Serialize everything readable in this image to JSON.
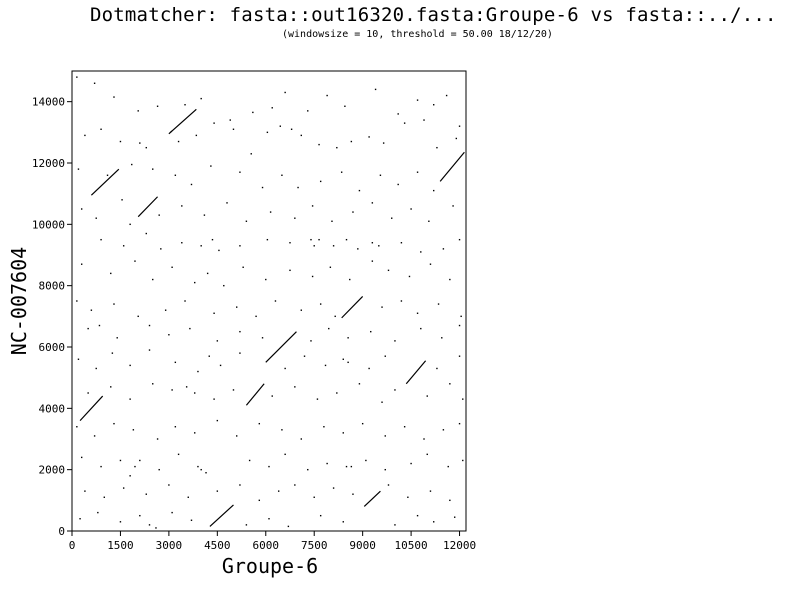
{
  "header": {
    "title": "Dotmatcher: fasta::out16320.fasta:Groupe-6 vs fasta::../...",
    "subtitle": "(windowsize = 10, threshold = 50.00  18/12/20)"
  },
  "chart_data": {
    "type": "scatter",
    "title": "Dotmatcher: fasta::out16320.fasta:Groupe-6 vs fasta::../...",
    "subtitle": "(windowsize = 10, threshold = 50.00  18/12/20)",
    "xlabel": "Groupe-6",
    "ylabel": "NC-007604",
    "xlim": [
      0,
      12200
    ],
    "ylim": [
      0,
      15000
    ],
    "x_ticks": [
      0,
      1500,
      3000,
      4500,
      6000,
      7500,
      9000,
      10500,
      12000
    ],
    "x_tick_labels": [
      "0",
      "1500",
      "3000",
      "4500",
      "6000",
      "7500",
      "9000",
      "10500",
      "12000"
    ],
    "y_ticks": [
      0,
      2000,
      4000,
      6000,
      8000,
      10000,
      12000,
      14000
    ],
    "y_tick_labels": [
      "0",
      "2000",
      "4000",
      "6000",
      "8000",
      "10000",
      "12000",
      "14000"
    ],
    "grid": false,
    "line_color": "#000000",
    "segments": [
      {
        "x1": 4270,
        "y1": 150,
        "x2": 5000,
        "y2": 850
      },
      {
        "x1": 250,
        "y1": 3600,
        "x2": 950,
        "y2": 4400
      },
      {
        "x1": 5400,
        "y1": 4100,
        "x2": 5950,
        "y2": 4800
      },
      {
        "x1": 6000,
        "y1": 5500,
        "x2": 6950,
        "y2": 6500
      },
      {
        "x1": 8350,
        "y1": 6950,
        "x2": 9000,
        "y2": 7650
      },
      {
        "x1": 10350,
        "y1": 4800,
        "x2": 10950,
        "y2": 5550
      },
      {
        "x1": 2050,
        "y1": 10250,
        "x2": 2650,
        "y2": 10900
      },
      {
        "x1": 3100,
        "y1": 13050,
        "x2": 3000,
        "y2": 12950
      },
      {
        "x1": 3050,
        "y1": 13000,
        "x2": 3850,
        "y2": 13750
      },
      {
        "x1": 11400,
        "y1": 11400,
        "x2": 12150,
        "y2": 12350
      },
      {
        "x1": 600,
        "y1": 10950,
        "x2": 1450,
        "y2": 11800
      },
      {
        "x1": 9050,
        "y1": 800,
        "x2": 9550,
        "y2": 1300
      }
    ],
    "dots": [
      [
        150,
        14800
      ],
      [
        700,
        14600
      ],
      [
        1300,
        14150
      ],
      [
        2050,
        13700
      ],
      [
        2650,
        13850
      ],
      [
        3500,
        13900
      ],
      [
        4000,
        14100
      ],
      [
        4900,
        13400
      ],
      [
        5600,
        13650
      ],
      [
        6200,
        13800
      ],
      [
        6600,
        14300
      ],
      [
        7300,
        13700
      ],
      [
        7900,
        14200
      ],
      [
        8450,
        13850
      ],
      [
        9400,
        14400
      ],
      [
        10100,
        13600
      ],
      [
        10700,
        14050
      ],
      [
        11200,
        13900
      ],
      [
        11600,
        14200
      ],
      [
        12000,
        13200
      ],
      [
        400,
        12900
      ],
      [
        900,
        13100
      ],
      [
        1500,
        12700
      ],
      [
        2100,
        12650
      ],
      [
        2300,
        12500
      ],
      [
        3300,
        12700
      ],
      [
        3850,
        12900
      ],
      [
        4400,
        13300
      ],
      [
        5000,
        13100
      ],
      [
        5550,
        12300
      ],
      [
        6050,
        13000
      ],
      [
        6450,
        13200
      ],
      [
        6800,
        13100
      ],
      [
        7100,
        12900
      ],
      [
        7650,
        12600
      ],
      [
        8200,
        12500
      ],
      [
        8650,
        12700
      ],
      [
        9200,
        12850
      ],
      [
        9650,
        12650
      ],
      [
        10300,
        13300
      ],
      [
        10900,
        13400
      ],
      [
        11300,
        12500
      ],
      [
        11900,
        12800
      ],
      [
        200,
        11800
      ],
      [
        1100,
        11600
      ],
      [
        1850,
        11950
      ],
      [
        2500,
        11800
      ],
      [
        3200,
        11600
      ],
      [
        3700,
        11300
      ],
      [
        4300,
        11900
      ],
      [
        5200,
        11700
      ],
      [
        5900,
        11200
      ],
      [
        6500,
        11600
      ],
      [
        7000,
        11200
      ],
      [
        7700,
        11400
      ],
      [
        8350,
        11700
      ],
      [
        8900,
        11100
      ],
      [
        9550,
        11600
      ],
      [
        10100,
        11300
      ],
      [
        10700,
        11700
      ],
      [
        11200,
        11100
      ],
      [
        300,
        10500
      ],
      [
        750,
        10200
      ],
      [
        1550,
        10800
      ],
      [
        1800,
        10000
      ],
      [
        2700,
        10300
      ],
      [
        3400,
        10600
      ],
      [
        4100,
        10300
      ],
      [
        4800,
        10700
      ],
      [
        5400,
        10100
      ],
      [
        6150,
        10400
      ],
      [
        6900,
        10200
      ],
      [
        7450,
        10600
      ],
      [
        8050,
        10100
      ],
      [
        8700,
        10400
      ],
      [
        9300,
        10700
      ],
      [
        9900,
        10200
      ],
      [
        10500,
        10500
      ],
      [
        11050,
        10100
      ],
      [
        11800,
        10600
      ],
      [
        900,
        9500
      ],
      [
        1600,
        9300
      ],
      [
        2300,
        9700
      ],
      [
        2750,
        9200
      ],
      [
        3400,
        9400
      ],
      [
        4000,
        9300
      ],
      [
        4350,
        9500
      ],
      [
        4550,
        9150
      ],
      [
        5200,
        9300
      ],
      [
        6050,
        9500
      ],
      [
        6750,
        9400
      ],
      [
        7400,
        9500
      ],
      [
        7500,
        9300
      ],
      [
        7650,
        9500
      ],
      [
        8100,
        9300
      ],
      [
        8500,
        9500
      ],
      [
        8850,
        9200
      ],
      [
        9300,
        9400
      ],
      [
        9500,
        9300
      ],
      [
        10200,
        9400
      ],
      [
        10800,
        9100
      ],
      [
        11500,
        9200
      ],
      [
        12000,
        9500
      ],
      [
        300,
        8700
      ],
      [
        1200,
        8400
      ],
      [
        1950,
        8800
      ],
      [
        2500,
        8200
      ],
      [
        3100,
        8600
      ],
      [
        3800,
        8100
      ],
      [
        4200,
        8400
      ],
      [
        4700,
        8000
      ],
      [
        5300,
        8600
      ],
      [
        6000,
        8200
      ],
      [
        6750,
        8500
      ],
      [
        7450,
        8300
      ],
      [
        8000,
        8600
      ],
      [
        8600,
        8200
      ],
      [
        9300,
        8800
      ],
      [
        9800,
        8500
      ],
      [
        10450,
        8300
      ],
      [
        11100,
        8700
      ],
      [
        11700,
        8200
      ],
      [
        150,
        7500
      ],
      [
        600,
        7200
      ],
      [
        1300,
        7400
      ],
      [
        2050,
        7000
      ],
      [
        2900,
        7200
      ],
      [
        3500,
        7500
      ],
      [
        4400,
        7100
      ],
      [
        5100,
        7300
      ],
      [
        5700,
        7000
      ],
      [
        6300,
        7500
      ],
      [
        7100,
        7200
      ],
      [
        7700,
        7400
      ],
      [
        8150,
        7000
      ],
      [
        9600,
        7300
      ],
      [
        10200,
        7500
      ],
      [
        10700,
        7100
      ],
      [
        11350,
        7400
      ],
      [
        12050,
        7000
      ],
      [
        500,
        6600
      ],
      [
        850,
        6700
      ],
      [
        1400,
        6300
      ],
      [
        2400,
        6700
      ],
      [
        3000,
        6400
      ],
      [
        3650,
        6600
      ],
      [
        4500,
        6200
      ],
      [
        5200,
        6500
      ],
      [
        5900,
        6300
      ],
      [
        7400,
        6200
      ],
      [
        7950,
        6600
      ],
      [
        8550,
        6300
      ],
      [
        9250,
        6500
      ],
      [
        10000,
        6200
      ],
      [
        10800,
        6600
      ],
      [
        11450,
        6300
      ],
      [
        12000,
        6700
      ],
      [
        200,
        5600
      ],
      [
        750,
        5300
      ],
      [
        1250,
        5800
      ],
      [
        1800,
        5400
      ],
      [
        2400,
        5900
      ],
      [
        3200,
        5500
      ],
      [
        3900,
        5200
      ],
      [
        4250,
        5700
      ],
      [
        4600,
        5400
      ],
      [
        5200,
        5800
      ],
      [
        6600,
        5300
      ],
      [
        7200,
        5700
      ],
      [
        7850,
        5400
      ],
      [
        8400,
        5600
      ],
      [
        8550,
        5500
      ],
      [
        9200,
        5300
      ],
      [
        9700,
        5700
      ],
      [
        11300,
        5300
      ],
      [
        12000,
        5700
      ],
      [
        500,
        4500
      ],
      [
        1200,
        4700
      ],
      [
        1800,
        4300
      ],
      [
        2500,
        4800
      ],
      [
        3100,
        4600
      ],
      [
        3550,
        4700
      ],
      [
        3800,
        4500
      ],
      [
        4400,
        4300
      ],
      [
        5000,
        4600
      ],
      [
        6200,
        4400
      ],
      [
        6900,
        4700
      ],
      [
        7600,
        4300
      ],
      [
        8200,
        4500
      ],
      [
        8900,
        4800
      ],
      [
        9600,
        4200
      ],
      [
        10000,
        4600
      ],
      [
        11000,
        4400
      ],
      [
        11700,
        4800
      ],
      [
        12100,
        4300
      ],
      [
        150,
        3400
      ],
      [
        700,
        3100
      ],
      [
        1300,
        3500
      ],
      [
        1900,
        3300
      ],
      [
        2650,
        3000
      ],
      [
        3200,
        3400
      ],
      [
        3800,
        3200
      ],
      [
        4500,
        3600
      ],
      [
        5100,
        3100
      ],
      [
        5800,
        3500
      ],
      [
        6500,
        3300
      ],
      [
        7100,
        3000
      ],
      [
        7800,
        3400
      ],
      [
        8400,
        3200
      ],
      [
        9000,
        3500
      ],
      [
        9700,
        3100
      ],
      [
        10300,
        3400
      ],
      [
        10900,
        3000
      ],
      [
        11500,
        3300
      ],
      [
        12000,
        3500
      ],
      [
        300,
        2400
      ],
      [
        900,
        2100
      ],
      [
        1500,
        2300
      ],
      [
        1800,
        1800
      ],
      [
        1950,
        2100
      ],
      [
        2100,
        2300
      ],
      [
        2700,
        2000
      ],
      [
        3300,
        2500
      ],
      [
        3900,
        2100
      ],
      [
        4000,
        2000
      ],
      [
        4150,
        1900
      ],
      [
        5500,
        2300
      ],
      [
        6100,
        2100
      ],
      [
        6600,
        2500
      ],
      [
        7300,
        2000
      ],
      [
        7900,
        2200
      ],
      [
        8500,
        2100
      ],
      [
        8650,
        2100
      ],
      [
        9100,
        2300
      ],
      [
        9700,
        2000
      ],
      [
        10500,
        2200
      ],
      [
        11000,
        2500
      ],
      [
        11650,
        2100
      ],
      [
        12100,
        2300
      ],
      [
        400,
        1300
      ],
      [
        1000,
        1100
      ],
      [
        1600,
        1400
      ],
      [
        2300,
        1200
      ],
      [
        3000,
        1500
      ],
      [
        3600,
        1100
      ],
      [
        4500,
        1300
      ],
      [
        5200,
        1500
      ],
      [
        5800,
        1000
      ],
      [
        6400,
        1300
      ],
      [
        6900,
        1500
      ],
      [
        7500,
        1100
      ],
      [
        8100,
        1400
      ],
      [
        8700,
        1200
      ],
      [
        9800,
        1500
      ],
      [
        10400,
        1100
      ],
      [
        11100,
        1300
      ],
      [
        11700,
        1000
      ],
      [
        250,
        400
      ],
      [
        800,
        600
      ],
      [
        1500,
        300
      ],
      [
        2100,
        500
      ],
      [
        2400,
        200
      ],
      [
        2600,
        100
      ],
      [
        3100,
        600
      ],
      [
        3700,
        350
      ],
      [
        5400,
        200
      ],
      [
        6100,
        400
      ],
      [
        6700,
        150
      ],
      [
        7700,
        500
      ],
      [
        8400,
        300
      ],
      [
        10000,
        200
      ],
      [
        10700,
        500
      ],
      [
        11200,
        300
      ],
      [
        11850,
        450
      ]
    ]
  }
}
